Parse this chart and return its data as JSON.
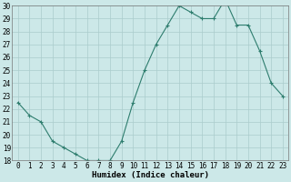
{
  "x": [
    0,
    1,
    2,
    3,
    4,
    5,
    6,
    7,
    8,
    9,
    10,
    11,
    12,
    13,
    14,
    15,
    16,
    17,
    18,
    19,
    20,
    21,
    22,
    23
  ],
  "y": [
    22.5,
    21.5,
    21.0,
    19.5,
    19.0,
    18.5,
    18.0,
    18.0,
    18.0,
    19.5,
    22.5,
    25.0,
    27.0,
    28.5,
    30.0,
    29.5,
    29.0,
    29.0,
    30.5,
    28.5,
    28.5,
    26.5,
    24.0,
    23.0
  ],
  "line_color": "#2e7d6e",
  "marker": "+",
  "background_color": "#cce8e8",
  "grid_color": "#aacccc",
  "xlabel": "Humidex (Indice chaleur)",
  "ylim": [
    18,
    30
  ],
  "xlim": [
    -0.5,
    23.5
  ],
  "yticks": [
    18,
    19,
    20,
    21,
    22,
    23,
    24,
    25,
    26,
    27,
    28,
    29,
    30
  ],
  "xtick_labels": [
    "0",
    "1",
    "2",
    "3",
    "4",
    "5",
    "6",
    "7",
    "8",
    "9",
    "10",
    "11",
    "12",
    "13",
    "14",
    "15",
    "16",
    "17",
    "18",
    "19",
    "20",
    "21",
    "22",
    "23"
  ],
  "tick_fontsize": 5.5,
  "label_fontsize": 6.5
}
